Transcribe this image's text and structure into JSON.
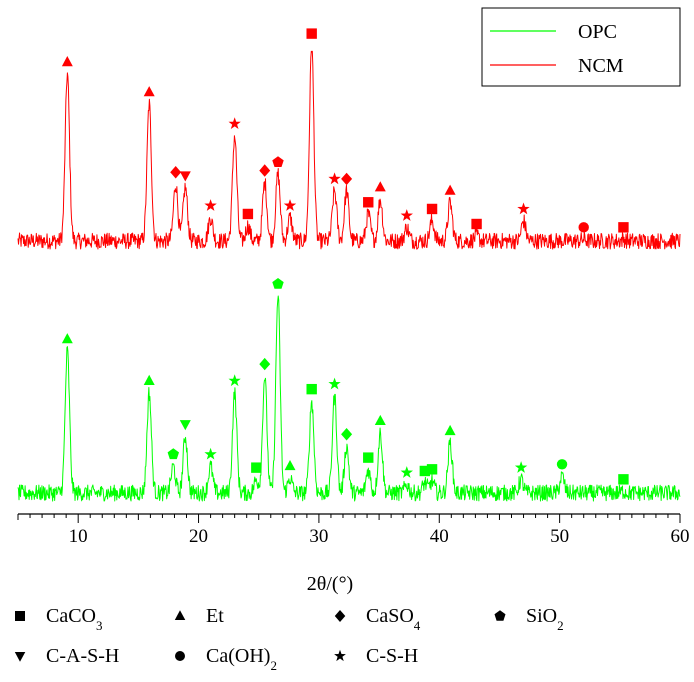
{
  "chart_data": {
    "type": "line",
    "title": "",
    "xlabel": "2θ/(°)",
    "ylabel": "",
    "xlim": [
      5,
      60
    ],
    "xticks": [
      "10",
      "20",
      "30",
      "40",
      "50",
      "60"
    ],
    "y_axis_shown": false,
    "grid": false,
    "legend_placement": "top-right",
    "series": [
      {
        "name": "NCM",
        "color": "#ff0000",
        "baseline": 8,
        "noise": 2.2,
        "peaks": [
          {
            "x": 9.1,
            "y": 100,
            "marker": "triangle"
          },
          {
            "x": 15.9,
            "y": 82,
            "marker": "triangle"
          },
          {
            "x": 18.1,
            "y": 34,
            "marker": "diamond"
          },
          {
            "x": 18.9,
            "y": 32,
            "marker": "triangle-down"
          },
          {
            "x": 21.0,
            "y": 14,
            "marker": "star"
          },
          {
            "x": 23.0,
            "y": 63,
            "marker": "star"
          },
          {
            "x": 24.1,
            "y": 9,
            "marker": "square"
          },
          {
            "x": 25.5,
            "y": 35,
            "marker": "diamond"
          },
          {
            "x": 26.6,
            "y": 40,
            "marker": "pentagon"
          },
          {
            "x": 27.6,
            "y": 14,
            "marker": "star"
          },
          {
            "x": 29.4,
            "y": 117,
            "marker": "square"
          },
          {
            "x": 31.3,
            "y": 30,
            "marker": "star"
          },
          {
            "x": 32.3,
            "y": 30,
            "marker": "diamond"
          },
          {
            "x": 34.1,
            "y": 16,
            "marker": "square"
          },
          {
            "x": 35.1,
            "y": 25,
            "marker": "triangle"
          },
          {
            "x": 37.3,
            "y": 8,
            "marker": "star"
          },
          {
            "x": 39.4,
            "y": 12,
            "marker": "square"
          },
          {
            "x": 40.9,
            "y": 23,
            "marker": "triangle"
          },
          {
            "x": 43.1,
            "y": 3,
            "marker": "square"
          },
          {
            "x": 47.0,
            "y": 12,
            "marker": "star"
          },
          {
            "x": 52.0,
            "y": 1,
            "marker": "circle"
          },
          {
            "x": 55.3,
            "y": 1,
            "marker": "square"
          }
        ]
      },
      {
        "name": "OPC",
        "color": "#00ff00",
        "baseline": 8,
        "noise": 2.2,
        "peaks": [
          {
            "x": 9.1,
            "y": 85,
            "marker": "triangle"
          },
          {
            "x": 15.9,
            "y": 60,
            "marker": "triangle"
          },
          {
            "x": 17.9,
            "y": 16,
            "marker": "pentagon"
          },
          {
            "x": 18.9,
            "y": 34,
            "marker": "triangle-down"
          },
          {
            "x": 21.0,
            "y": 16,
            "marker": "star"
          },
          {
            "x": 23.0,
            "y": 60,
            "marker": "star"
          },
          {
            "x": 24.8,
            "y": 8,
            "marker": "square"
          },
          {
            "x": 25.5,
            "y": 70,
            "marker": "diamond"
          },
          {
            "x": 26.6,
            "y": 118,
            "marker": "pentagon"
          },
          {
            "x": 27.6,
            "y": 9,
            "marker": "triangle"
          },
          {
            "x": 29.4,
            "y": 55,
            "marker": "square"
          },
          {
            "x": 31.3,
            "y": 58,
            "marker": "star"
          },
          {
            "x": 32.3,
            "y": 28,
            "marker": "diamond"
          },
          {
            "x": 34.1,
            "y": 14,
            "marker": "square"
          },
          {
            "x": 35.1,
            "y": 36,
            "marker": "triangle"
          },
          {
            "x": 37.3,
            "y": 5,
            "marker": "star"
          },
          {
            "x": 38.8,
            "y": 6,
            "marker": "square"
          },
          {
            "x": 39.4,
            "y": 7,
            "marker": "square"
          },
          {
            "x": 40.9,
            "y": 30,
            "marker": "triangle"
          },
          {
            "x": 46.8,
            "y": 8,
            "marker": "star"
          },
          {
            "x": 50.2,
            "y": 10,
            "marker": "circle"
          },
          {
            "x": 55.3,
            "y": 1,
            "marker": "square"
          }
        ]
      }
    ],
    "symbol_legend": [
      {
        "marker": "square",
        "label_main": "CaCO",
        "label_sub": "3"
      },
      {
        "marker": "triangle",
        "label_main": "Et",
        "label_sub": ""
      },
      {
        "marker": "diamond",
        "label_main": "CaSO",
        "label_sub": "4"
      },
      {
        "marker": "pentagon",
        "label_main": "SiO",
        "label_sub": "2"
      },
      {
        "marker": "triangle-down",
        "label_main": "C-A-S-H",
        "label_sub": ""
      },
      {
        "marker": "circle",
        "label_main": "Ca(OH)",
        "label_sub": "2"
      },
      {
        "marker": "star",
        "label_main": "C-S-H",
        "label_sub": ""
      }
    ]
  }
}
